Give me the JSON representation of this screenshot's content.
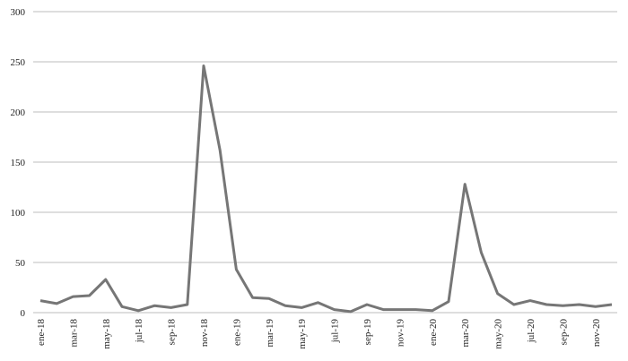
{
  "chart_data": {
    "type": "line",
    "categories": [
      "ene-18",
      null,
      "mar-18",
      null,
      "may-18",
      null,
      "jul-18",
      null,
      "sep-18",
      null,
      "nov-18",
      null,
      "ene-19",
      null,
      "mar-19",
      null,
      "may-19",
      null,
      "jul-19",
      null,
      "sep-19",
      null,
      "nov-19",
      null,
      "ene-20",
      null,
      "mar-20",
      null,
      "may-20",
      null,
      "jul-20",
      null,
      "sep-20",
      null,
      "nov-20",
      null
    ],
    "values": [
      12,
      9,
      16,
      17,
      33,
      6,
      2,
      7,
      5,
      8,
      246,
      162,
      43,
      15,
      14,
      7,
      5,
      10,
      3,
      1,
      8,
      3,
      3,
      3,
      2,
      11,
      128,
      60,
      19,
      8,
      12,
      8,
      7,
      8,
      6,
      8
    ],
    "color": "#767676",
    "ylim": [
      0,
      300
    ],
    "yticks": [
      0,
      50,
      100,
      150,
      200,
      250,
      300
    ],
    "grid": true
  }
}
